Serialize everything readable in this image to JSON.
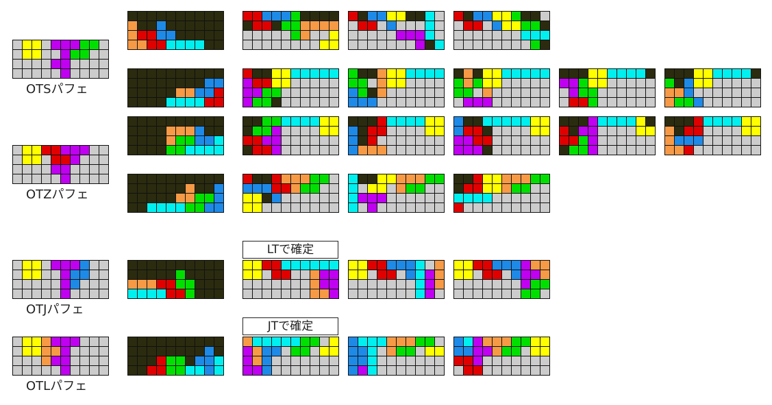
{
  "colors": {
    "K": "#2b2b0f",
    "G": "#cccccc",
    "Y": "#ffff00",
    "P": "#c000f0",
    "S": "#00e000",
    "Z": "#e00000",
    "J": "#1e8ae8",
    "L": "#f79a46",
    "I": "#00f0f0"
  },
  "labels": {
    "ots": "OTSパフェ",
    "otz": "OTZパフェ",
    "otj": "OTJパフェ",
    "otl": "OTLパフェ",
    "lt_confirm": "LTで確定",
    "jt_confirm": "JTで確定"
  },
  "boards": {
    "ots_key": [
      "GYYGPPPSSG",
      "GYYGGPSSGG",
      "GGGGPPGGGG",
      "GGGGGPGGGG"
    ],
    "row1_src": [
      "KKKKKKKKKK",
      "LKKJKKKKKK",
      "LZZJJKKKKK",
      "LLZZIIIIKK"
    ],
    "r1c1": [
      "ZZJJJSKKKK",
      "KZZKSSLLLL",
      "GGGGGSLGGY",
      "GGGGGGGGYY"
    ],
    "r1c2": [
      "ZKJJYYKKIG",
      "GZZGJGGGIG",
      "GGGGGPPPIG",
      "GGGGGGGPKI"
    ],
    "r1c3": [
      "ZKJJYYSKKG",
      "GZZGJYYSSK",
      "GGGGGGGIII",
      "GGGGGGGGSK"
    ],
    "row2_src": [
      "KKKKKKKKKK",
      "KKKKKKKKJJ",
      "KKKKKLLJJZ",
      "KKKKIIIIZZ"
    ],
    "r2c1": [
      "ZKKYYIIIII",
      "PZZYYGGGGG",
      "PPSSGGGGGG",
      "PSSKGGGGGG"
    ],
    "r2c2": [
      "SKKLYYIIII",
      "SSGLYYGGGG",
      "JSKLGGGGGG",
      "JJJGGGGGGG"
    ],
    "r2c3": [
      "KLKYYIIIII",
      "SLSYYGGGGG",
      "SSGLGGGGGG",
      "GPPPGGGGGG"
    ],
    "r2c4": [
      "KKKYYIIIIK",
      "PPSYYGGGGG",
      "GPSSGGGGGG",
      "GZZSGGGGGG"
    ],
    "r2c5": [
      "KKKYYIIIIK",
      "SKJYYGGGGG",
      "LLJGGGGGGG",
      "LSSJGGGGGG"
    ],
    "row3_src": [
      "KKKKKKKKKK",
      "KKKKLLLJKK",
      "KKKKLSSJJI",
      "KKKKSSIIII"
    ],
    "r3c1": [
      "KKSSIIIIYY",
      "KSSPGGGGYY",
      "ZZPPGGGGGG",
      "KZZPGGGGGG"
    ],
    "r3c2": [
      "KKKZIIIIYY",
      "JKZZGGGGYY",
      "JKZGGGGGGG",
      "JLLLGGGGGG"
    ],
    "r3c3": [
      "JKKIIIIIYY",
      "JZZKGGGGYY",
      "PPZZGGGGGG",
      "PPPKGGGGGG"
    ],
    "r3c4": [
      "KKKPIIIIYK",
      "ZKPPGGGGYY",
      "ZZSPGGGGGG",
      "KSSPGGGGGG"
    ],
    "r3c5": [
      "KKKZIIIIYY",
      "LKZZGGGGYY",
      "LJJJGGGGGG",
      "LLZGGGGGGG"
    ],
    "otz_key": [
      "GYYZZPPPGG",
      "GYYGZZPGGG",
      "GGGGPPGGGG",
      "GGGGGPGGGG"
    ],
    "row4_src": [
      "KKKKKKKKKK",
      "KKKKKKLKKJ",
      "KKKKKLLSSJ",
      "KKIIIISSJJ"
    ],
    "r4c1": [
      "ZKKZLLLSSG",
      "JJJZZLSSGG",
      "YYKJGGGGGG",
      "YYGGGGGGGG"
    ],
    "r4c2": [
      "IKKYYLLLSS",
      "IGYYGLSSGG",
      "IPPPGGGGGG",
      "IGPGGGGGGG"
    ],
    "r4c3": [
      "KKZYYLLLSS",
      "KZZYYLSSGG",
      "IIIIGGGGGG",
      "ZGGGGGGGGG"
    ],
    "otj_key": [
      "GYYGPPPJGG",
      "GYYGGPJJGG",
      "GGGGGPJGGG",
      "GGGGGPGGGG"
    ],
    "row5_src": [
      "KKKKKKKKKK",
      "KKKKKSKKKK",
      "LLLZZSSKKK",
      "IIIIZZSKKK"
    ],
    "r5c1": [
      "YYZZIIIIII",
      "YYGZZGGLPP",
      "GGGGGGGLPP",
      "GGGGGGGLLP"
    ],
    "r5c2": [
      "YYZZJJJIGL",
      "YYGZZGJIPL",
      "GGGGGGGIPL",
      "GGGGGGGIPG"
    ],
    "r5c3": [
      "YYZZJJJPLL",
      "YYGZZGJPPL",
      "GGGGGGGPSS",
      "GGGGGGGSSG"
    ],
    "otl_key": [
      "GYYLPPPGGG",
      "GYYLLPGGGG",
      "GGGLPPGGGG",
      "GGGGGPGGGG"
    ],
    "row6_src": [
      "KKKKKKKKKK",
      "KKKKKKKKJK",
      "KKKZSSKJJI",
      "KKZZSSIIJI"
    ],
    "r6c1": [
      "LIIIIISSGY",
      "PLJJGSSGYY",
      "PLJGGGGGGG",
      "PPJGGGGGGG"
    ],
    "r6c2": [
      "JIIILLLSSG",
      "JJIGLSSGYY",
      "JJIGGGGGGG",
      "JPIGGGGGGG"
    ],
    "r6c3": [
      "JIPLLLSSYY",
      "JJPPLSSGYY",
      "ZZPGGGGGGG",
      "GZZGGGGGGG"
    ]
  }
}
